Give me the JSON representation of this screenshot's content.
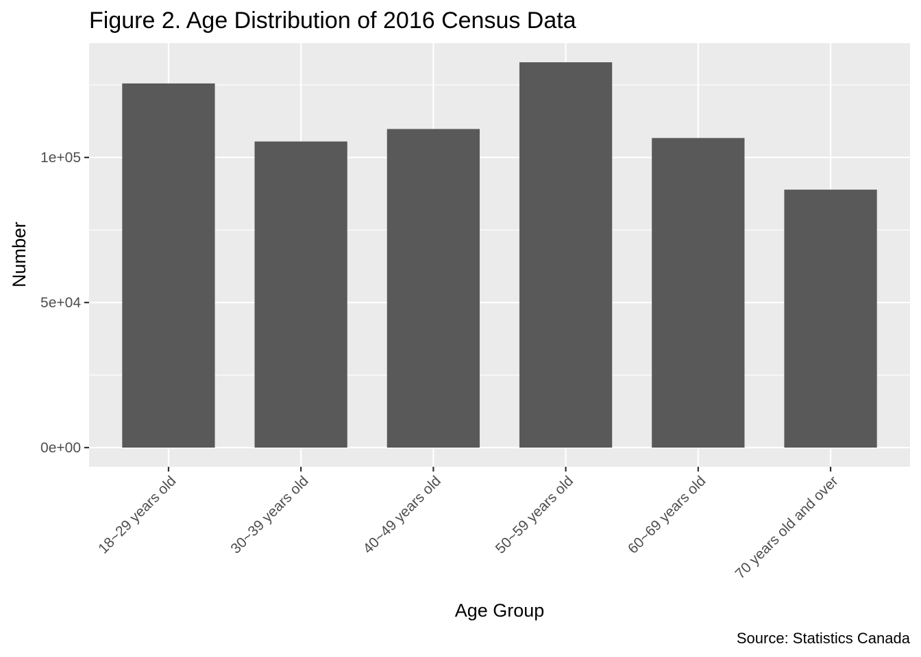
{
  "chart_data": {
    "type": "bar",
    "title": "Figure 2. Age Distribution of 2016 Census Data",
    "xlabel": "Age Group",
    "ylabel": "Number",
    "caption": "Source: Statistics Canada",
    "categories": [
      "18~29 years old",
      "30~39 years old",
      "40~49 years old",
      "50~59 years old",
      "60~69 years old",
      "70 years old and over"
    ],
    "values": [
      125500,
      105500,
      109800,
      132800,
      106700,
      88900
    ],
    "yticks": [
      0,
      50000,
      100000
    ],
    "ytick_labels": [
      "0e+00",
      "5e+04",
      "1e+05"
    ],
    "ylim": [
      -6600,
      139400
    ],
    "grid": true,
    "colors": {
      "bar": "#595959",
      "panel": "#ebebeb",
      "grid": "#ffffff",
      "tick": "#333333"
    }
  }
}
